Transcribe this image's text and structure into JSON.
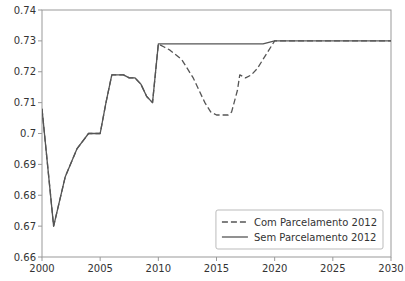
{
  "chart_data": {
    "type": "line",
    "series": [
      {
        "name": "Sem Parcelamento 2012",
        "color": "#555555",
        "line_style": "solid",
        "x": [
          2000,
          2001,
          2002,
          2003,
          2004,
          2005,
          2005.5,
          2006,
          2007,
          2007.5,
          2008,
          2008.5,
          2009,
          2009.5,
          2010,
          2010.5,
          2011,
          2012,
          2013,
          2014,
          2015,
          2016,
          2017,
          2018,
          2019,
          2020,
          2021,
          2022,
          2023,
          2024,
          2025,
          2026,
          2027,
          2028,
          2029,
          2030
        ],
        "values": [
          0.708,
          0.67,
          0.686,
          0.695,
          0.7,
          0.7,
          0.71,
          0.719,
          0.719,
          0.718,
          0.718,
          0.716,
          0.712,
          0.71,
          0.729,
          0.729,
          0.729,
          0.729,
          0.729,
          0.729,
          0.729,
          0.729,
          0.729,
          0.729,
          0.729,
          0.73,
          0.73,
          0.73,
          0.73,
          0.73,
          0.73,
          0.73,
          0.73,
          0.73,
          0.73,
          0.73
        ]
      },
      {
        "name": "Com Parcelamento 2012",
        "color": "#555555",
        "line_style": "dashed",
        "x": [
          2000,
          2001,
          2002,
          2003,
          2004,
          2005,
          2005.5,
          2006,
          2007,
          2007.5,
          2008,
          2008.5,
          2009,
          2009.5,
          2010,
          2010.5,
          2011,
          2012,
          2013,
          2014,
          2014.5,
          2015,
          2015.5,
          2016,
          2016.3,
          2016.8,
          2017,
          2017.5,
          2018,
          2018.5,
          2019,
          2019.5,
          2020,
          2021,
          2022,
          2023,
          2024,
          2025,
          2026,
          2027,
          2028,
          2029,
          2030
        ],
        "values": [
          0.708,
          0.67,
          0.686,
          0.695,
          0.7,
          0.7,
          0.71,
          0.719,
          0.719,
          0.718,
          0.718,
          0.716,
          0.712,
          0.71,
          0.729,
          0.728,
          0.727,
          0.724,
          0.718,
          0.71,
          0.707,
          0.706,
          0.706,
          0.706,
          0.707,
          0.714,
          0.719,
          0.718,
          0.719,
          0.721,
          0.724,
          0.727,
          0.73,
          0.73,
          0.73,
          0.73,
          0.73,
          0.73,
          0.73,
          0.73,
          0.73,
          0.73,
          0.73
        ]
      }
    ],
    "xlim": [
      2000,
      2030
    ],
    "ylim": [
      0.66,
      0.74
    ],
    "xticks": [
      2000,
      2005,
      2010,
      2015,
      2020,
      2025,
      2030
    ],
    "yticks": [
      0.66,
      0.67,
      0.68,
      0.69,
      0.7,
      0.71,
      0.72,
      0.73,
      0.74
    ],
    "grid": false,
    "legend": "lower right"
  }
}
